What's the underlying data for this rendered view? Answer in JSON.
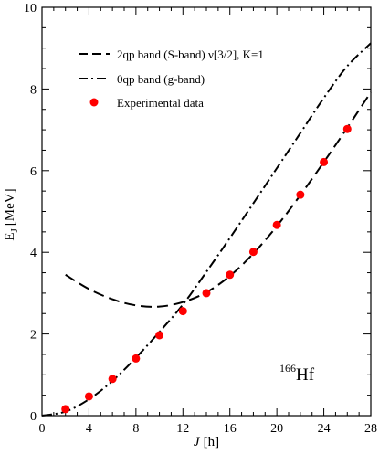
{
  "chart_data": {
    "type": "line",
    "xlabel": "J",
    "xlabel_unit": "[ħ]",
    "ylabel": "E",
    "ylabel_sub": "J",
    "ylabel_unit": "[MeV]",
    "xlim": [
      0,
      28
    ],
    "ylim": [
      0,
      10
    ],
    "x_ticks": [
      0,
      4,
      8,
      12,
      16,
      20,
      24,
      28
    ],
    "y_ticks": [
      0,
      2,
      4,
      6,
      8,
      10
    ],
    "legend_position": "top-left",
    "annotation": {
      "mass": "166",
      "element": "Hf"
    },
    "series": [
      {
        "name": "2qp band (S-band) ν[3/2], K=1",
        "style": "dashed",
        "x": [
          2,
          4,
          6,
          8,
          10,
          12,
          14,
          16,
          18,
          20,
          22,
          24,
          26,
          28
        ],
        "y": [
          3.45,
          3.1,
          2.85,
          2.7,
          2.67,
          2.78,
          3.02,
          3.42,
          3.97,
          4.64,
          5.4,
          6.21,
          7.05,
          7.92
        ]
      },
      {
        "name": "0qp band (g-band)",
        "style": "dashdot",
        "x": [
          0,
          2,
          4,
          6,
          8,
          10,
          12,
          14,
          16,
          18,
          20,
          22,
          24,
          26,
          28
        ],
        "y": [
          0.0,
          0.1,
          0.4,
          0.85,
          1.42,
          2.05,
          2.72,
          3.52,
          4.35,
          5.2,
          6.06,
          6.92,
          7.78,
          8.56,
          9.12
        ]
      },
      {
        "name": "Experimental data",
        "style": "markers",
        "color": "#ff0000",
        "x": [
          2,
          4,
          6,
          8,
          10,
          12,
          14,
          16,
          18,
          20,
          22,
          24,
          26
        ],
        "y": [
          0.16,
          0.47,
          0.9,
          1.4,
          1.97,
          2.56,
          3.0,
          3.45,
          4.01,
          4.67,
          5.41,
          6.21,
          7.02
        ]
      }
    ]
  }
}
